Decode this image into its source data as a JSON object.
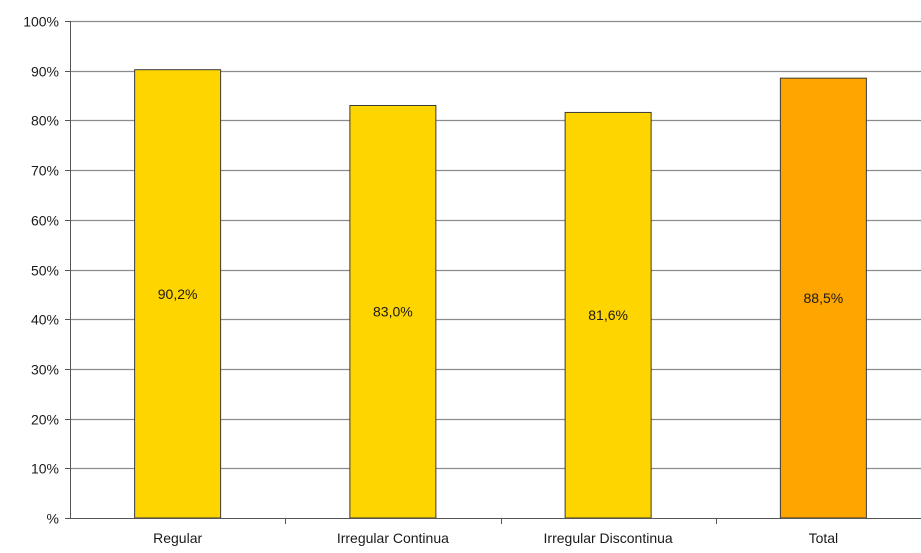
{
  "chart_data": {
    "type": "bar",
    "categories": [
      "Regular",
      "Irregular Continua",
      "Irregular Discontinua",
      "Total"
    ],
    "values": [
      90.2,
      83.0,
      81.6,
      88.5
    ],
    "data_labels": [
      "90,2%",
      "83,0%",
      "81,6%",
      "88,5%"
    ],
    "bar_colors": [
      "#FFD500",
      "#FFD500",
      "#FFD500",
      "#FFA500"
    ],
    "bar_border_color": "#3a3a3a",
    "grid_color": "#8c8c8c",
    "ylim": [
      0,
      100
    ],
    "y_ticks": [
      0,
      10,
      20,
      30,
      40,
      50,
      60,
      70,
      80,
      90,
      100
    ],
    "y_tick_labels": [
      "%",
      "10%",
      "20%",
      "30%",
      "40%",
      "50%",
      "60%",
      "70%",
      "80%",
      "90%",
      "100%"
    ],
    "grid": true,
    "title": "",
    "xlabel": "",
    "ylabel": ""
  }
}
